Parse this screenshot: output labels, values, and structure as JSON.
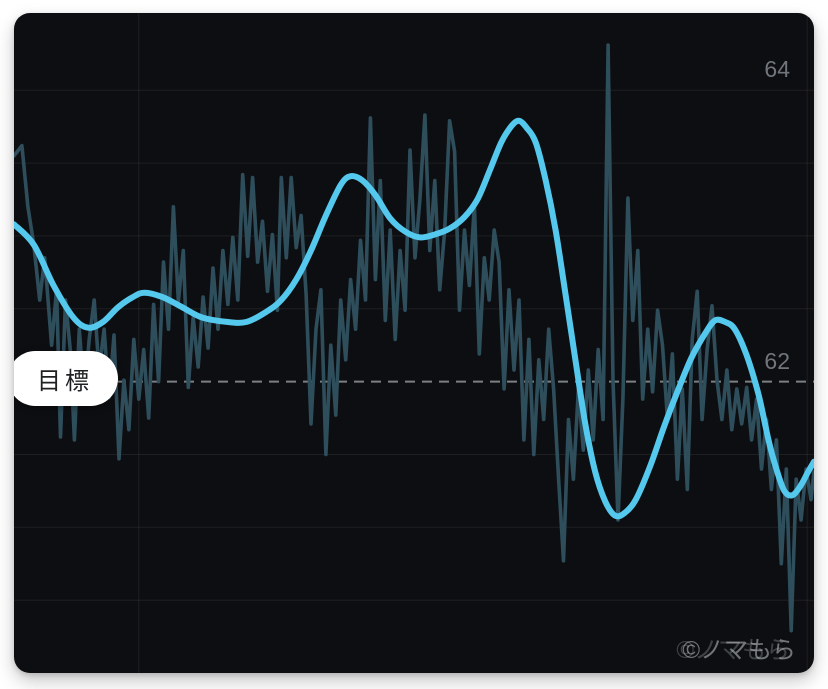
{
  "card": {
    "bg": "#0d0e11"
  },
  "target_label": "目標",
  "watermark": {
    "text": "©ノマもら"
  },
  "y_axis": {
    "ticks": [
      {
        "label": "64",
        "value": 64
      },
      {
        "label": "62",
        "value": 62
      }
    ],
    "color": "#70767c"
  },
  "chart_data": {
    "type": "line",
    "title": "",
    "xlabel": "",
    "ylabel": "",
    "ylim": [
      60.0,
      64.53
    ],
    "x_range": [
      0,
      808
    ],
    "grid": true,
    "y_gridlines": [
      64,
      63.5,
      63,
      62.5,
      61.5,
      61,
      60.5
    ],
    "x_gridlines": [
      126,
      801
    ],
    "gridline_color": "rgba(255,255,255,0.07)",
    "target": {
      "value": 62,
      "label": "目標",
      "line_color": "#8e9499",
      "style": "dashed"
    },
    "series": [
      {
        "name": "raw",
        "color": "#2e4e5c",
        "width": 3.6,
        "smooth": false,
        "points": [
          [
            0,
            63.55
          ],
          [
            8,
            63.62
          ],
          [
            14,
            63.2
          ],
          [
            20,
            62.94
          ],
          [
            26,
            62.56
          ],
          [
            31,
            62.85
          ],
          [
            38,
            62.25
          ],
          [
            43,
            62.63
          ],
          [
            47,
            61.62
          ],
          [
            52,
            62.56
          ],
          [
            57,
            62.21
          ],
          [
            61,
            61.6
          ],
          [
            66,
            62.36
          ],
          [
            71,
            61.91
          ],
          [
            76,
            62.29
          ],
          [
            81,
            62.56
          ],
          [
            86,
            62.07
          ],
          [
            91,
            62.36
          ],
          [
            96,
            61.89
          ],
          [
            101,
            62.32
          ],
          [
            106,
            61.47
          ],
          [
            111,
            62.01
          ],
          [
            116,
            61.67
          ],
          [
            121,
            62.29
          ],
          [
            126,
            61.88
          ],
          [
            131,
            62.22
          ],
          [
            136,
            61.75
          ],
          [
            141,
            62.53
          ],
          [
            146,
            62.0
          ],
          [
            151,
            62.82
          ],
          [
            156,
            62.36
          ],
          [
            161,
            63.2
          ],
          [
            166,
            62.55
          ],
          [
            171,
            62.9
          ],
          [
            176,
            61.96
          ],
          [
            181,
            62.44
          ],
          [
            186,
            62.1
          ],
          [
            191,
            62.58
          ],
          [
            196,
            62.23
          ],
          [
            201,
            62.78
          ],
          [
            206,
            62.36
          ],
          [
            211,
            62.9
          ],
          [
            216,
            62.53
          ],
          [
            221,
            62.99
          ],
          [
            226,
            62.56
          ],
          [
            231,
            63.42
          ],
          [
            236,
            62.86
          ],
          [
            241,
            63.4
          ],
          [
            246,
            62.82
          ],
          [
            251,
            63.1
          ],
          [
            256,
            62.62
          ],
          [
            261,
            63.01
          ],
          [
            266,
            62.49
          ],
          [
            270,
            63.4
          ],
          [
            275,
            62.85
          ],
          [
            280,
            63.4
          ],
          [
            285,
            62.92
          ],
          [
            290,
            63.14
          ],
          [
            295,
            62.6
          ],
          [
            300,
            61.71
          ],
          [
            305,
            62.36
          ],
          [
            310,
            62.63
          ],
          [
            315,
            61.5
          ],
          [
            320,
            62.25
          ],
          [
            325,
            61.77
          ],
          [
            330,
            62.56
          ],
          [
            335,
            62.15
          ],
          [
            340,
            62.7
          ],
          [
            345,
            62.36
          ],
          [
            350,
            62.97
          ],
          [
            355,
            62.56
          ],
          [
            360,
            63.81
          ],
          [
            365,
            62.7
          ],
          [
            370,
            63.38
          ],
          [
            375,
            62.42
          ],
          [
            380,
            63.04
          ],
          [
            385,
            62.29
          ],
          [
            390,
            62.9
          ],
          [
            395,
            62.49
          ],
          [
            400,
            63.59
          ],
          [
            405,
            62.85
          ],
          [
            410,
            63.25
          ],
          [
            415,
            63.83
          ],
          [
            420,
            62.9
          ],
          [
            425,
            63.38
          ],
          [
            430,
            62.63
          ],
          [
            435,
            63.04
          ],
          [
            440,
            63.79
          ],
          [
            445,
            63.58
          ],
          [
            450,
            62.49
          ],
          [
            455,
            63.04
          ],
          [
            460,
            62.66
          ],
          [
            465,
            63.21
          ],
          [
            470,
            62.19
          ],
          [
            475,
            62.85
          ],
          [
            480,
            62.56
          ],
          [
            485,
            63.04
          ],
          [
            490,
            62.82
          ],
          [
            495,
            61.95
          ],
          [
            500,
            62.63
          ],
          [
            505,
            62.08
          ],
          [
            510,
            62.56
          ],
          [
            515,
            61.6
          ],
          [
            520,
            62.29
          ],
          [
            525,
            61.5
          ],
          [
            530,
            62.15
          ],
          [
            535,
            61.74
          ],
          [
            540,
            62.36
          ],
          [
            545,
            61.95
          ],
          [
            550,
            61.33
          ],
          [
            555,
            60.77
          ],
          [
            560,
            61.74
          ],
          [
            565,
            61.33
          ],
          [
            570,
            61.95
          ],
          [
            575,
            61.53
          ],
          [
            580,
            62.08
          ],
          [
            585,
            61.6
          ],
          [
            590,
            62.22
          ],
          [
            595,
            61.74
          ],
          [
            600,
            64.31
          ],
          [
            605,
            62.01
          ],
          [
            610,
            61.05
          ],
          [
            615,
            61.88
          ],
          [
            620,
            63.26
          ],
          [
            625,
            62.42
          ],
          [
            630,
            62.9
          ],
          [
            635,
            61.88
          ],
          [
            640,
            62.36
          ],
          [
            645,
            61.93
          ],
          [
            650,
            62.49
          ],
          [
            655,
            62.25
          ],
          [
            660,
            61.74
          ],
          [
            665,
            62.19
          ],
          [
            670,
            61.33
          ],
          [
            675,
            61.95
          ],
          [
            680,
            61.26
          ],
          [
            685,
            62.29
          ],
          [
            690,
            62.62
          ],
          [
            695,
            61.74
          ],
          [
            700,
            62.22
          ],
          [
            705,
            62.52
          ],
          [
            710,
            62.01
          ],
          [
            715,
            61.74
          ],
          [
            720,
            62.08
          ],
          [
            725,
            61.67
          ],
          [
            730,
            61.95
          ],
          [
            735,
            61.71
          ],
          [
            740,
            61.96
          ],
          [
            745,
            61.6
          ],
          [
            750,
            61.88
          ],
          [
            755,
            61.4
          ],
          [
            760,
            61.74
          ],
          [
            765,
            61.26
          ],
          [
            770,
            61.6
          ],
          [
            775,
            60.75
          ],
          [
            780,
            61.4
          ],
          [
            785,
            60.29
          ],
          [
            790,
            61.33
          ],
          [
            795,
            61.05
          ],
          [
            800,
            61.4
          ],
          [
            805,
            61.19
          ],
          [
            808,
            61.38
          ]
        ]
      },
      {
        "name": "smoothed",
        "color": "#55c8ee",
        "width": 6,
        "smooth": true,
        "points": [
          [
            0,
            63.08
          ],
          [
            20,
            62.94
          ],
          [
            40,
            62.66
          ],
          [
            60,
            62.44
          ],
          [
            75,
            62.37
          ],
          [
            90,
            62.41
          ],
          [
            105,
            62.51
          ],
          [
            120,
            62.58
          ],
          [
            132,
            62.61
          ],
          [
            150,
            62.58
          ],
          [
            170,
            62.51
          ],
          [
            190,
            62.44
          ],
          [
            215,
            62.41
          ],
          [
            235,
            62.41
          ],
          [
            255,
            62.48
          ],
          [
            270,
            62.56
          ],
          [
            285,
            62.7
          ],
          [
            300,
            62.9
          ],
          [
            315,
            63.14
          ],
          [
            330,
            63.35
          ],
          [
            340,
            63.41
          ],
          [
            352,
            63.38
          ],
          [
            365,
            63.28
          ],
          [
            380,
            63.12
          ],
          [
            395,
            63.03
          ],
          [
            410,
            62.99
          ],
          [
            425,
            63.01
          ],
          [
            440,
            63.05
          ],
          [
            455,
            63.13
          ],
          [
            468,
            63.25
          ],
          [
            480,
            63.44
          ],
          [
            492,
            63.64
          ],
          [
            502,
            63.75
          ],
          [
            510,
            63.79
          ],
          [
            518,
            63.74
          ],
          [
            527,
            63.64
          ],
          [
            537,
            63.38
          ],
          [
            547,
            63.04
          ],
          [
            557,
            62.6
          ],
          [
            567,
            62.15
          ],
          [
            577,
            61.71
          ],
          [
            587,
            61.38
          ],
          [
            597,
            61.18
          ],
          [
            607,
            61.08
          ],
          [
            617,
            61.1
          ],
          [
            628,
            61.19
          ],
          [
            642,
            61.41
          ],
          [
            656,
            61.68
          ],
          [
            670,
            61.93
          ],
          [
            684,
            62.16
          ],
          [
            698,
            62.33
          ],
          [
            708,
            62.42
          ],
          [
            718,
            62.41
          ],
          [
            728,
            62.36
          ],
          [
            740,
            62.18
          ],
          [
            752,
            61.91
          ],
          [
            762,
            61.6
          ],
          [
            770,
            61.4
          ],
          [
            778,
            61.25
          ],
          [
            786,
            61.22
          ],
          [
            794,
            61.28
          ],
          [
            802,
            61.38
          ],
          [
            808,
            61.45
          ]
        ]
      }
    ]
  }
}
